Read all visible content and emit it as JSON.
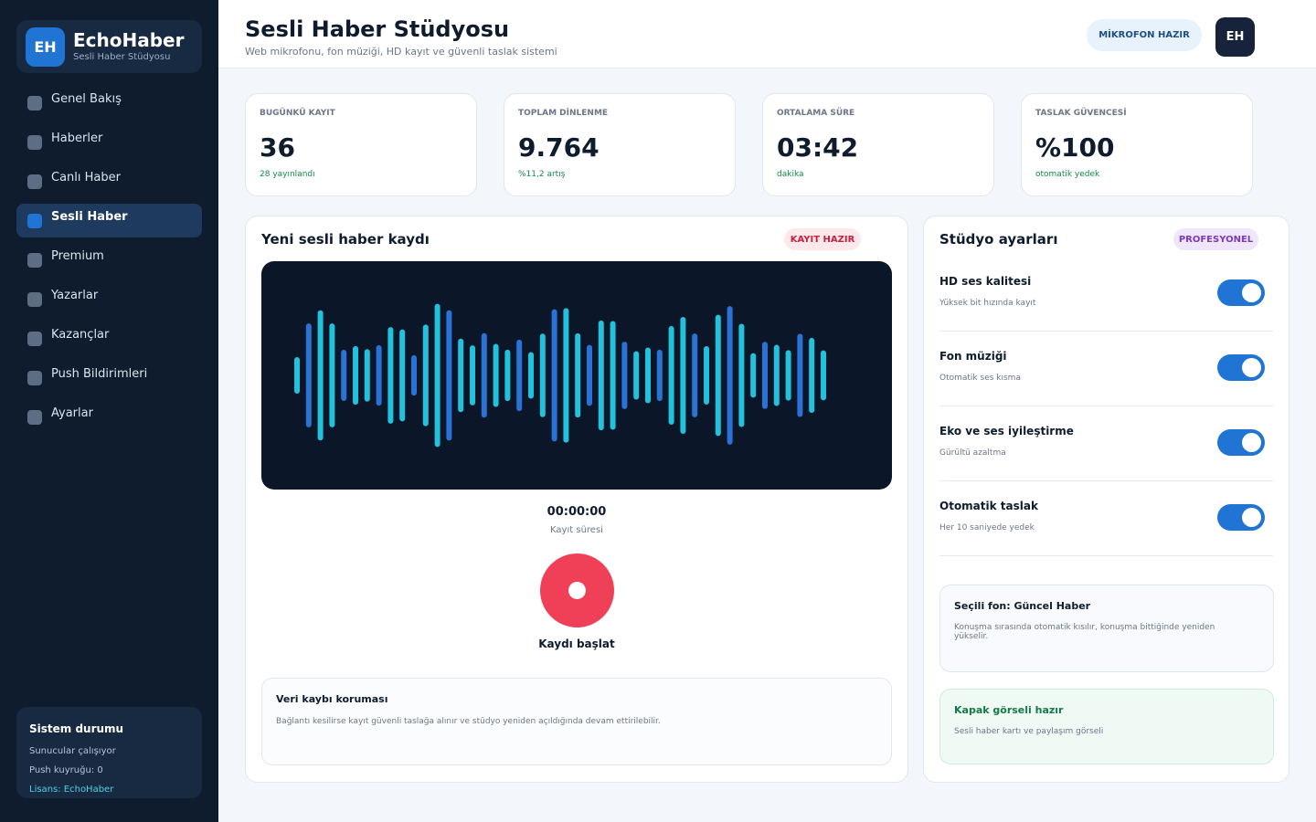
{
  "brand": {
    "logo": "EH",
    "name": "EchoHaber",
    "subtitle": "Sesli Haber Stüdyosu"
  },
  "nav": [
    "Genel Bakış",
    "Haberler",
    "Canlı Haber",
    "Sesli Haber",
    "Premium",
    "Yazarlar",
    "Kazançlar",
    "Push Bildirimleri",
    "Ayarlar"
  ],
  "system": {
    "title": "Sistem durumu",
    "lines": [
      "Sunucular çalışıyor",
      "Push kuyruğu: 0",
      "Lisans: EchoHaber"
    ]
  },
  "header": {
    "title": "Sesli Haber Stüdyosu",
    "subtitle": "Web mikrofonu, fon müziği, HD kayıt ve güvenli taslak sistemi",
    "status": "MİKROFON HAZIR",
    "avatar": "EH"
  },
  "stats": [
    {
      "label": "BUGÜNKÜ KAYIT",
      "value": "36",
      "note": "28 yayınlandı"
    },
    {
      "label": "TOPLAM DİNLENME",
      "value": "9.764",
      "note": "%11,2 artış"
    },
    {
      "label": "ORTALAMA SÜRE",
      "value": "03:42",
      "note": "dakika"
    },
    {
      "label": "TASLAK GÜVENCESİ",
      "value": "%100",
      "note": "otomatik yedek"
    }
  ],
  "recorder": {
    "title": "Yeni sesli haber kaydı",
    "badge": "KAYIT HAZIR",
    "time": "00:00:00",
    "time_label": "Kayıt süresi",
    "button": "Kaydı başlat",
    "notice_title": "Veri kaybı koruması",
    "notice_text": "Bağlantı kesilirse kayıt güvenli taslağa alınır ve stüdyo yeniden açıldığında devam ettirilebilir."
  },
  "settings": {
    "title": "Stüdyo ayarları",
    "badge": "PROFESYONEL",
    "items": [
      {
        "name": "HD ses kalitesi",
        "desc": "Yüksek bit hızında kayıt"
      },
      {
        "name": "Fon müziği",
        "desc": "Otomatik ses kısma"
      },
      {
        "name": "Eko ve ses iyileştirme",
        "desc": "Gürültü azaltma"
      },
      {
        "name": "Otomatik taslak",
        "desc": "Her 10 saniyede yedek"
      }
    ],
    "fon": {
      "title": "Seçili fon: Güncel Haber",
      "text": "Konuşma sırasında otomatik kısılır, konuşma bittiğinde yeniden yükselir."
    },
    "cover": {
      "title": "Kapak görseli hazır",
      "text": "Sesli haber kartı ve paylaşım görseli"
    }
  }
}
